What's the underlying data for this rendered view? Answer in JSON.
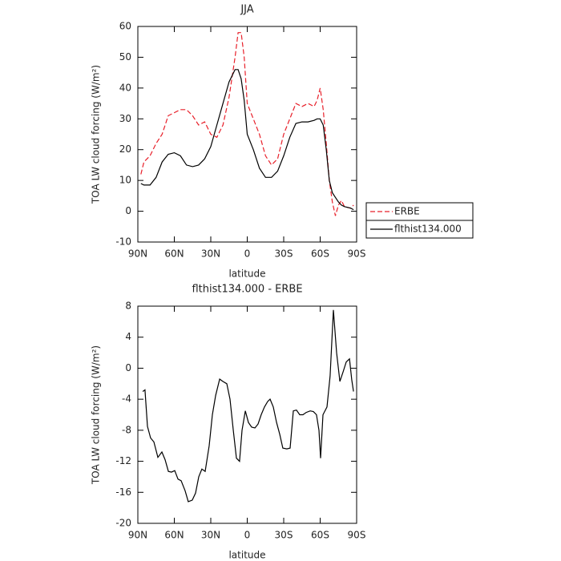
{
  "chart_data": [
    {
      "type": "line",
      "title": "JJA",
      "xlabel": "latitude",
      "ylabel": "TOA LW cloud forcing (W/m²)",
      "x": [
        87.5,
        85,
        80,
        75,
        70,
        65,
        60,
        55,
        50,
        45,
        40,
        35,
        30,
        25,
        20,
        15,
        10,
        7.5,
        5,
        2.5,
        0,
        -5,
        -10,
        -15,
        -20,
        -25,
        -30,
        -35,
        -40,
        -45,
        -50,
        -55,
        -57.5,
        -60,
        -62.5,
        -65,
        -67.5,
        -70,
        -72.5,
        -75,
        -77.5,
        -80,
        -85,
        -87.5
      ],
      "series": [
        {
          "name": "ERBE",
          "color": "#e8202a",
          "dash": true,
          "values": [
            12,
            16,
            18,
            22,
            25,
            31,
            32,
            33,
            33,
            31,
            28,
            29,
            25,
            24,
            28,
            37,
            50,
            58,
            58,
            50,
            35,
            30,
            25,
            18,
            15,
            17,
            25,
            30,
            35,
            34,
            35,
            34,
            36,
            40,
            33,
            22,
            10,
            3,
            -1.5,
            2,
            3.5,
            1.5,
            1,
            2
          ]
        },
        {
          "name": "flthist134.000",
          "color": "#000000",
          "dash": false,
          "values": [
            9,
            8.5,
            8.5,
            11,
            16,
            18.5,
            19,
            18,
            15,
            14.5,
            15,
            17,
            21,
            28,
            35,
            42,
            46,
            46,
            43,
            36,
            25,
            20,
            14,
            11,
            11,
            13,
            18,
            24,
            28.5,
            29,
            29,
            29.5,
            30,
            30,
            28,
            20,
            10,
            6,
            4.5,
            3,
            2,
            1.5,
            1,
            0.5
          ]
        }
      ],
      "xlim": [
        90,
        -90
      ],
      "xticks": [
        {
          "value": 90,
          "label": "90N"
        },
        {
          "value": 60,
          "label": "60N"
        },
        {
          "value": 30,
          "label": "30N"
        },
        0,
        {
          "value": -30,
          "label": "30S"
        },
        {
          "value": -60,
          "label": "60S"
        },
        {
          "value": -90,
          "label": "90S"
        }
      ],
      "ylim": [
        -10,
        60
      ],
      "yticks": [
        -10,
        0,
        10,
        20,
        30,
        40,
        50,
        60
      ],
      "legend": "outside right"
    },
    {
      "type": "line",
      "title": "flthist134.000 - ERBE",
      "xlabel": "latitude",
      "ylabel": "TOA LW cloud forcing (W/m²)",
      "x": [
        86.0,
        84.1,
        82.1,
        79.5,
        76.8,
        73.5,
        70.2,
        67.6,
        64.9,
        62.3,
        59.7,
        57.0,
        54.4,
        51.1,
        48.5,
        45.2,
        42.5,
        39.9,
        37.3,
        34.6,
        31.3,
        28.7,
        26.0,
        22.7,
        20.1,
        16.8,
        14.2,
        11.5,
        8.9,
        6.3,
        4.3,
        1.6,
        -1.0,
        -3.6,
        -6.3,
        -8.9,
        -11.5,
        -14.2,
        -16.8,
        -18.8,
        -21.4,
        -24.1,
        -26.7,
        -29.3,
        -32.6,
        -35.3,
        -37.9,
        -40.5,
        -43.2,
        -45.8,
        -48.5,
        -51.8,
        -54.4,
        -57.0,
        -59.0,
        -60.3,
        -62.3,
        -65.6,
        -68.2,
        -70.9,
        -73.5,
        -76.2,
        -78.8,
        -81.4,
        -84.1,
        -86.0,
        -87.4
      ],
      "series": [
        {
          "name": "flthist134.000 - ERBE",
          "color": "#000000",
          "dash": false,
          "values": [
            -3,
            -2.8,
            -7.5,
            -9,
            -9.5,
            -11.5,
            -10.8,
            -11.8,
            -13.3,
            -13.4,
            -13.2,
            -14.3,
            -14.5,
            -15.8,
            -17.2,
            -17,
            -16.1,
            -14,
            -13,
            -13.3,
            -10,
            -6,
            -3.5,
            -1.4,
            -1.7,
            -2,
            -4,
            -8,
            -11.6,
            -12,
            -8,
            -5.5,
            -7,
            -7.6,
            -7.7,
            -7.2,
            -6,
            -5,
            -4.3,
            -4,
            -5,
            -7,
            -8.5,
            -10.3,
            -10.4,
            -10.3,
            -5.5,
            -5.4,
            -6,
            -6,
            -5.7,
            -5.5,
            -5.6,
            -6,
            -8,
            -11.6,
            -6,
            -5,
            -1,
            7.5,
            2,
            -1.7,
            -0.5,
            0.8,
            1.2,
            -1.5,
            -3
          ]
        }
      ],
      "xlim": [
        90,
        -90
      ],
      "xticks": [
        {
          "value": 90,
          "label": "90N"
        },
        {
          "value": 60,
          "label": "60N"
        },
        {
          "value": 30,
          "label": "30N"
        },
        0,
        {
          "value": -30,
          "label": "30S"
        },
        {
          "value": -60,
          "label": "60S"
        },
        {
          "value": -90,
          "label": "90S"
        }
      ],
      "ylim": [
        -20,
        8
      ],
      "yticks": [
        -20,
        -16,
        -12,
        -8,
        -4,
        0,
        4,
        8
      ]
    }
  ]
}
